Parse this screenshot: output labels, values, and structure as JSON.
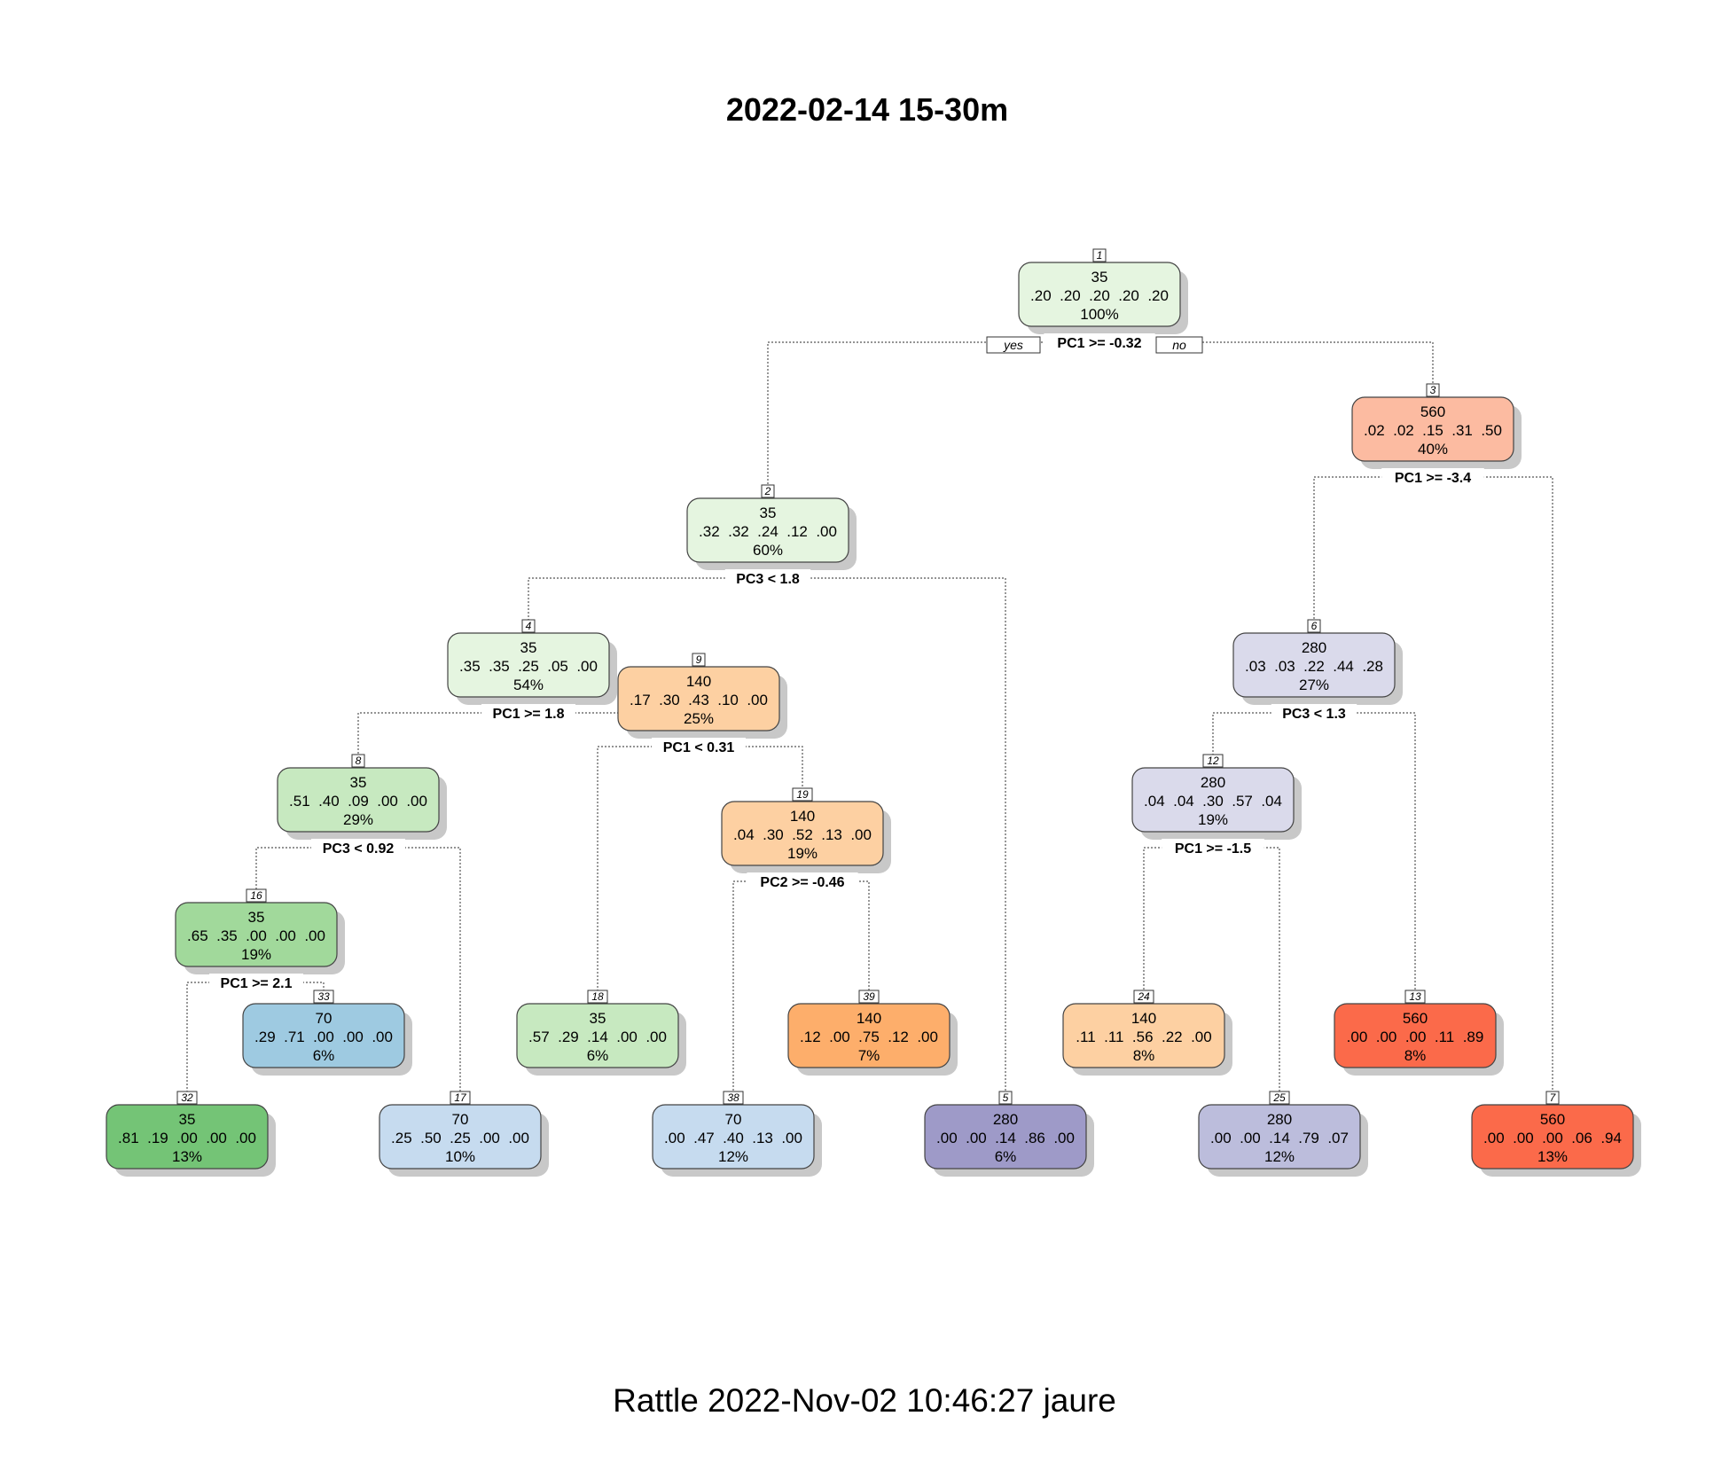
{
  "title": "2022-02-14 15-30m",
  "footer": "Rattle 2022-Nov-02 10:46:27 jaure",
  "yes_label": "yes",
  "no_label": "no",
  "nodes": [
    {
      "id": "1",
      "class": "35",
      "probs": ".20  .20  .20  .20  .20",
      "pct": "100%",
      "fill": "#e5f5e0",
      "split": "PC1 >= -0.32"
    },
    {
      "id": "2",
      "class": "35",
      "probs": ".32  .32  .24  .12  .00",
      "pct": "60%",
      "fill": "#e5f5e0",
      "split": "PC3 < 1.8"
    },
    {
      "id": "3",
      "class": "560",
      "probs": ".02  .02  .15  .31  .50",
      "pct": "40%",
      "fill": "#fcbba1",
      "split": "PC1 >= -3.4"
    },
    {
      "id": "4",
      "class": "35",
      "probs": ".35  .35  .25  .05  .00",
      "pct": "54%",
      "fill": "#e5f5e0",
      "split": "PC1 >= 1.8"
    },
    {
      "id": "9",
      "class": "140",
      "probs": ".17  .30  .43  .10  .00",
      "pct": "25%",
      "fill": "#fdd0a2",
      "split": "PC1 < 0.31"
    },
    {
      "id": "6",
      "class": "280",
      "probs": ".03  .03  .22  .44  .28",
      "pct": "27%",
      "fill": "#dadaeb",
      "split": "PC3 < 1.3"
    },
    {
      "id": "8",
      "class": "35",
      "probs": ".51  .40  .09  .00  .00",
      "pct": "29%",
      "fill": "#c7e9c0",
      "split": "PC3 < 0.92"
    },
    {
      "id": "19",
      "class": "140",
      "probs": ".04  .30  .52  .13  .00",
      "pct": "19%",
      "fill": "#fdd0a2",
      "split": "PC2 >= -0.46"
    },
    {
      "id": "12",
      "class": "280",
      "probs": ".04  .04  .30  .57  .04",
      "pct": "19%",
      "fill": "#dadaeb",
      "split": "PC1 >= -1.5"
    },
    {
      "id": "16",
      "class": "35",
      "probs": ".65  .35  .00  .00  .00",
      "pct": "19%",
      "fill": "#a1d99b",
      "split": "PC1 >= 2.1"
    },
    {
      "id": "33",
      "class": "70",
      "probs": ".29  .71  .00  .00  .00",
      "pct": "6%",
      "fill": "#9ecae1"
    },
    {
      "id": "18",
      "class": "35",
      "probs": ".57  .29  .14  .00  .00",
      "pct": "6%",
      "fill": "#c7e9c0"
    },
    {
      "id": "39",
      "class": "140",
      "probs": ".12  .00  .75  .12  .00",
      "pct": "7%",
      "fill": "#fdae6b"
    },
    {
      "id": "24",
      "class": "140",
      "probs": ".11  .11  .56  .22  .00",
      "pct": "8%",
      "fill": "#fdd0a2"
    },
    {
      "id": "13",
      "class": "560",
      "probs": ".00  .00  .00  .11  .89",
      "pct": "8%",
      "fill": "#fb6a4a"
    },
    {
      "id": "32",
      "class": "35",
      "probs": ".81  .19  .00  .00  .00",
      "pct": "13%",
      "fill": "#74c476"
    },
    {
      "id": "17",
      "class": "70",
      "probs": ".25  .50  .25  .00  .00",
      "pct": "10%",
      "fill": "#c6dbef"
    },
    {
      "id": "38",
      "class": "70",
      "probs": ".00  .47  .40  .13  .00",
      "pct": "12%",
      "fill": "#c6dbef"
    },
    {
      "id": "5",
      "class": "280",
      "probs": ".00  .00  .14  .86  .00",
      "pct": "6%",
      "fill": "#9e9ac8"
    },
    {
      "id": "25",
      "class": "280",
      "probs": ".00  .00  .14  .79  .07",
      "pct": "12%",
      "fill": "#bcbddc"
    },
    {
      "id": "7",
      "class": "560",
      "probs": ".00  .00  .00  .06  .94",
      "pct": "13%",
      "fill": "#fb6a4a"
    }
  ],
  "edges": [
    {
      "from": "1",
      "to": "2"
    },
    {
      "from": "1",
      "to": "3"
    },
    {
      "from": "2",
      "to": "4"
    },
    {
      "from": "2",
      "to": "5"
    },
    {
      "from": "3",
      "to": "6"
    },
    {
      "from": "3",
      "to": "7"
    },
    {
      "from": "4",
      "to": "8"
    },
    {
      "from": "4",
      "to": "9"
    },
    {
      "from": "9",
      "to": "18"
    },
    {
      "from": "9",
      "to": "19"
    },
    {
      "from": "6",
      "to": "12"
    },
    {
      "from": "6",
      "to": "13"
    },
    {
      "from": "8",
      "to": "16"
    },
    {
      "from": "8",
      "to": "17"
    },
    {
      "from": "19",
      "to": "38"
    },
    {
      "from": "19",
      "to": "39"
    },
    {
      "from": "12",
      "to": "24"
    },
    {
      "from": "12",
      "to": "25"
    },
    {
      "from": "16",
      "to": "32"
    },
    {
      "from": "16",
      "to": "33"
    }
  ]
}
